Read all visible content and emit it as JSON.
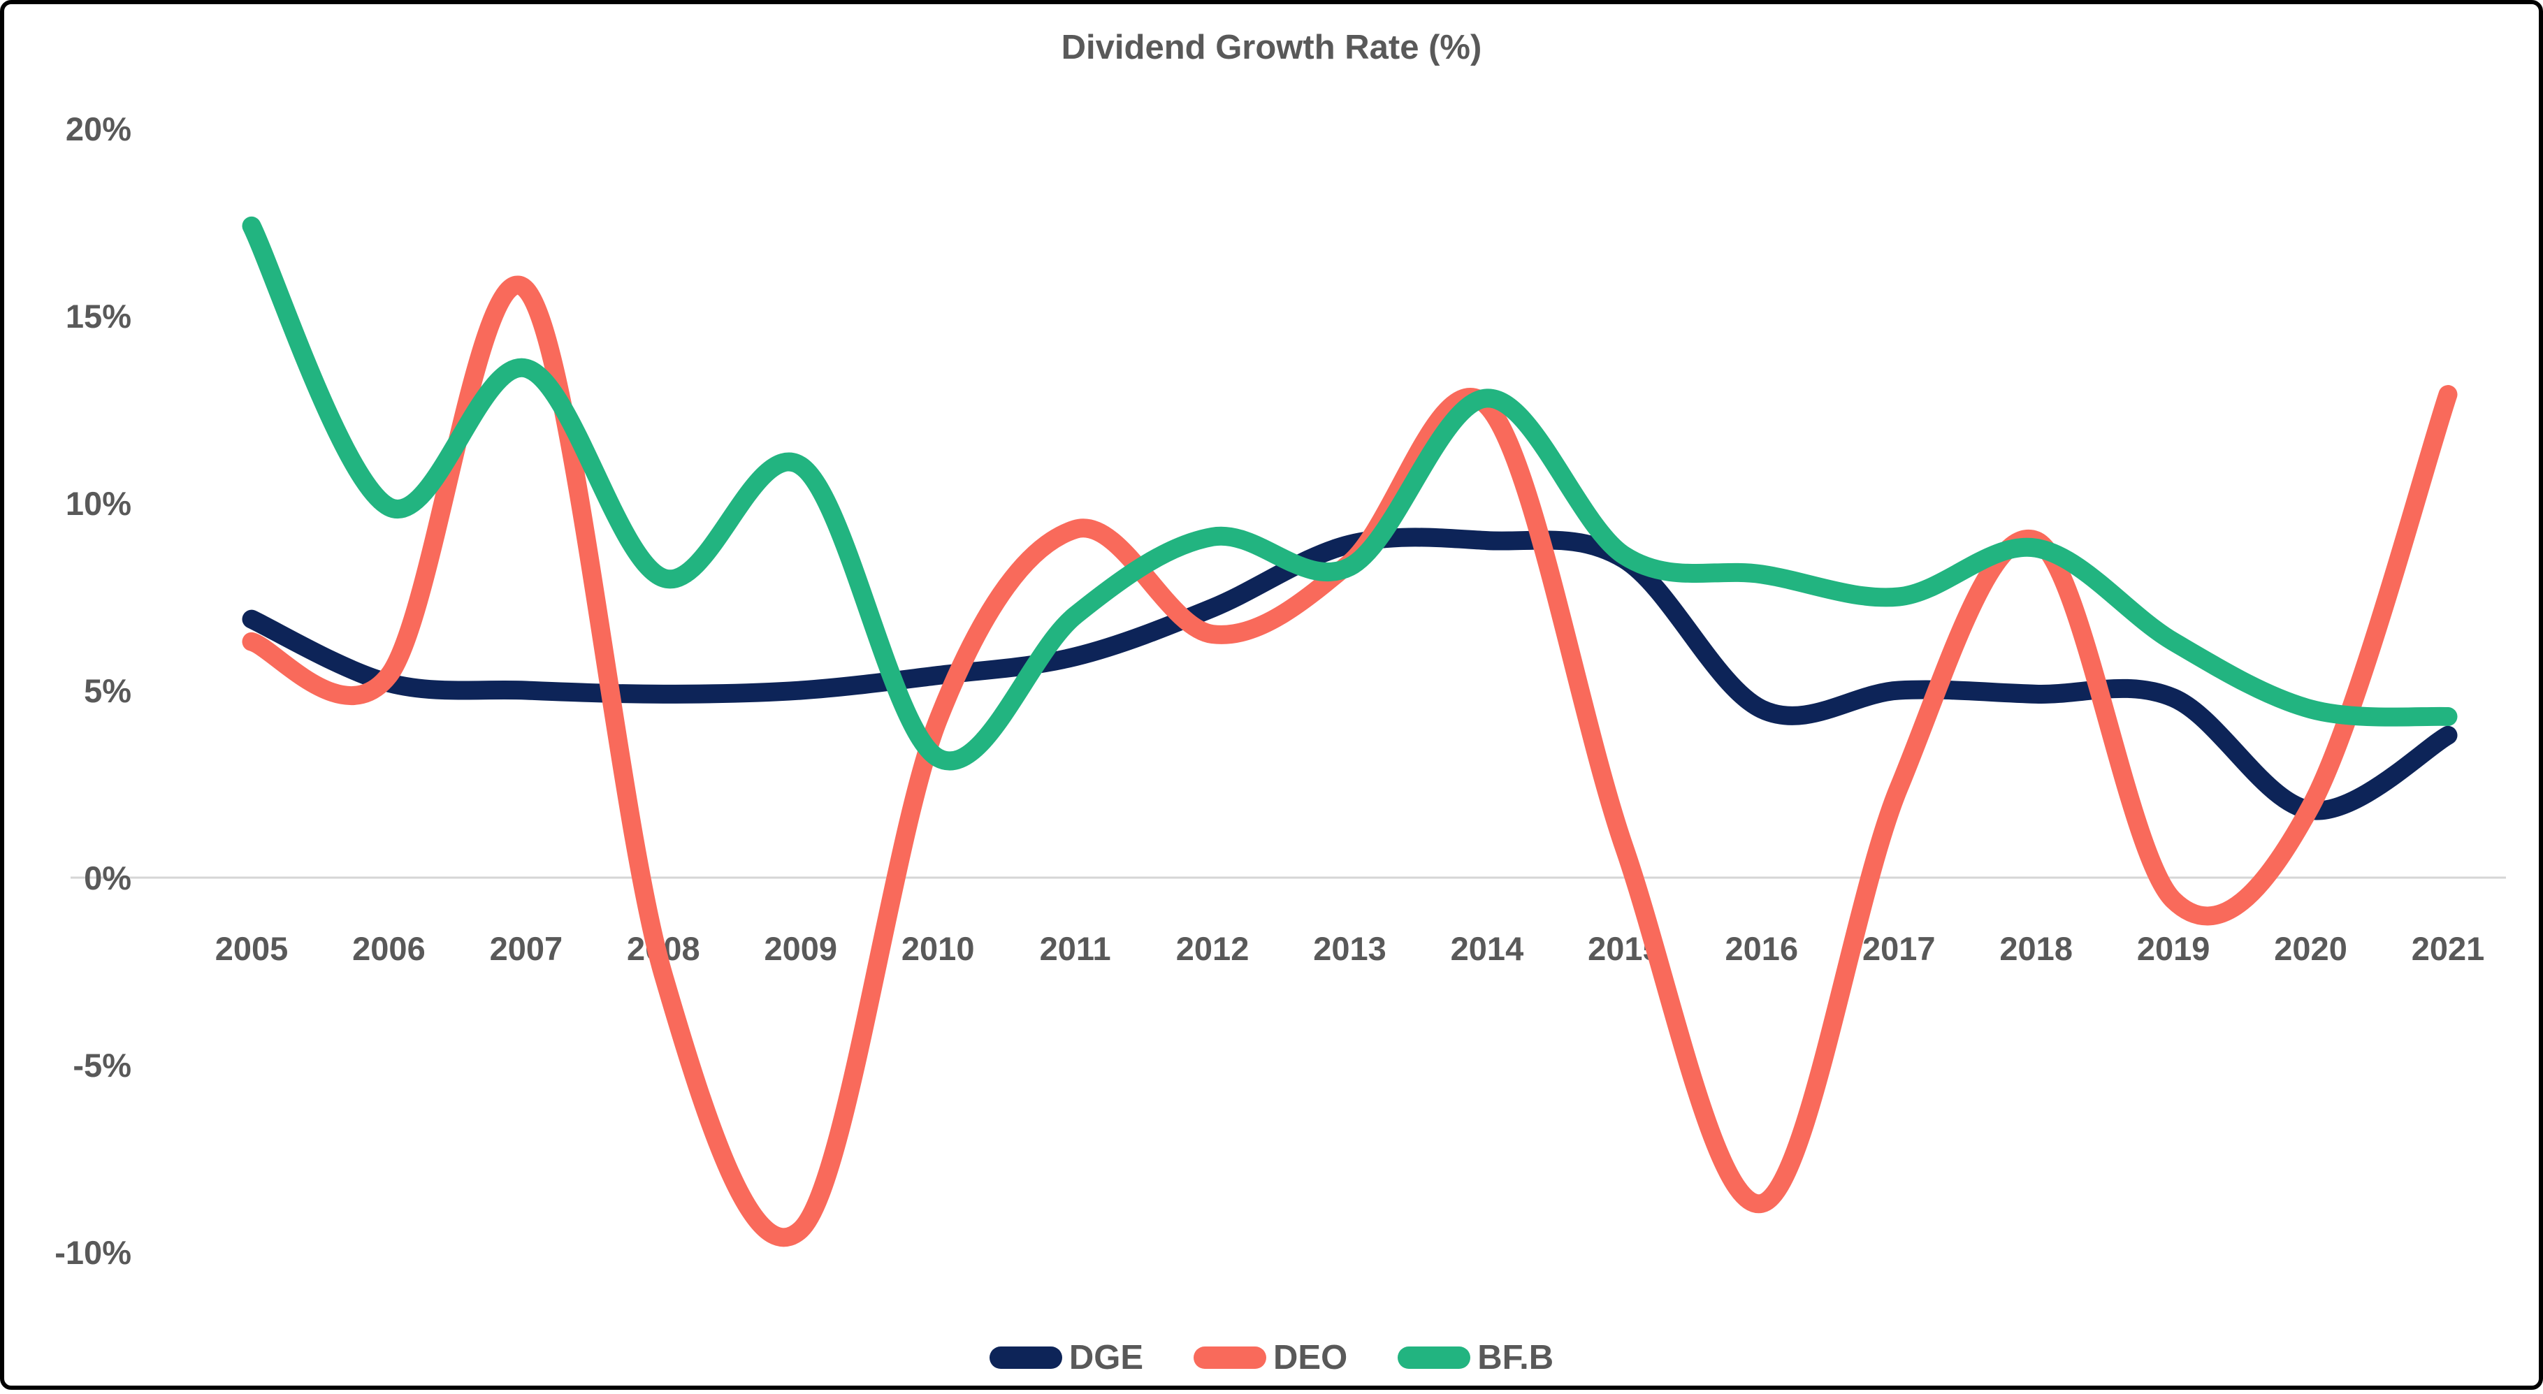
{
  "title": "Dividend Growth Rate (%)",
  "colors": {
    "dge": "#0D2458",
    "deo": "#F96A5B",
    "bfb": "#22B480",
    "text_gray": "#595959",
    "gridline": "#D6D6D6",
    "border": "#000000",
    "background": "#FFFFFF"
  },
  "chart_data": {
    "type": "line",
    "title": "Dividend Growth Rate (%)",
    "x": [
      2005,
      2006,
      2007,
      2008,
      2009,
      2010,
      2011,
      2012,
      2013,
      2014,
      2015,
      2016,
      2017,
      2018,
      2019,
      2020,
      2021
    ],
    "series": [
      {
        "name": "DGE",
        "color": "#0D2458",
        "values": [
          6.9,
          5.2,
          5.0,
          4.9,
          5.0,
          5.4,
          5.9,
          7.2,
          8.9,
          9.0,
          8.5,
          4.5,
          5.0,
          4.9,
          4.8,
          1.8,
          3.8
        ]
      },
      {
        "name": "DEO",
        "color": "#F96A5B",
        "values": [
          6.3,
          5.4,
          15.7,
          -2.6,
          -9.4,
          4.2,
          9.3,
          6.5,
          8.4,
          12.6,
          0.8,
          -8.7,
          2.4,
          9.0,
          -0.6,
          1.9,
          12.9
        ]
      },
      {
        "name": "BF.B",
        "color": "#22B480",
        "values": [
          17.4,
          9.9,
          13.6,
          8.0,
          11.0,
          3.2,
          7.0,
          9.1,
          8.3,
          12.8,
          8.6,
          8.1,
          7.5,
          8.8,
          6.3,
          4.5,
          4.3
        ]
      }
    ],
    "ylim": [
      -10,
      20
    ],
    "ytick_step": 5,
    "yticks": [
      20,
      15,
      10,
      5,
      0,
      -5,
      -10
    ],
    "ytick_labels": [
      "20%",
      "15%",
      "10%",
      "5%",
      "0%",
      "-5%",
      "-10%"
    ],
    "xtick_labels": [
      "2005",
      "2006",
      "2007",
      "2008",
      "2009",
      "2010",
      "2011",
      "2012",
      "2013",
      "2014",
      "2015",
      "2016",
      "2017",
      "2018",
      "2019",
      "2020",
      "2021"
    ],
    "grid": "zero-line-only",
    "legend_position": "bottom",
    "line_smoothing": true
  },
  "legend": {
    "items": [
      {
        "label": "DGE"
      },
      {
        "label": "DEO"
      },
      {
        "label": "BF.B"
      }
    ]
  }
}
